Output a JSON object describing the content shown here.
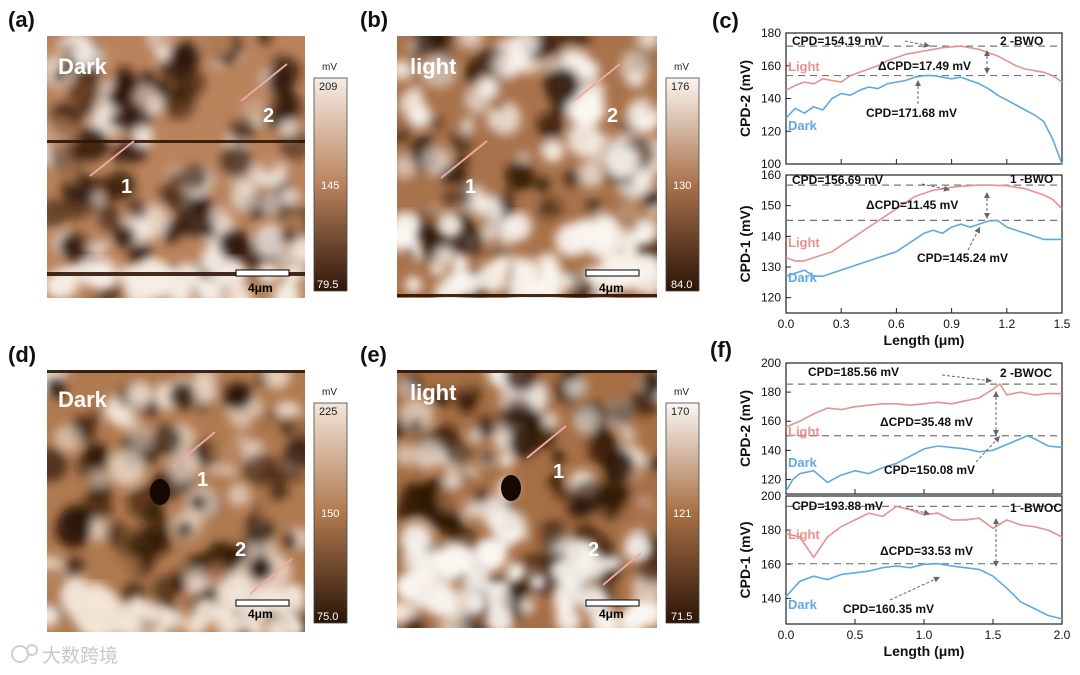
{
  "figure": {
    "watermark": "大数跨境",
    "panels": {
      "a": {
        "tag": "(a)",
        "condition": "Dark",
        "scale_unit": "mV",
        "scale_max": "209",
        "scale_mid": "145",
        "scale_min": "79.5",
        "scalebar": "4μm",
        "marker_1": "1",
        "marker_2": "2",
        "colors": {
          "light": "#f6ede6",
          "mid": "#b9835c",
          "dark": "#2f1608"
        }
      },
      "b": {
        "tag": "(b)",
        "condition": "light",
        "scale_unit": "mV",
        "scale_max": "176",
        "scale_mid": "130",
        "scale_min": "84.0",
        "scalebar": "4μm",
        "marker_1": "1",
        "marker_2": "2",
        "colors": {
          "light": "#fbf6f1",
          "mid": "#a8724b",
          "dark": "#2b1406"
        }
      },
      "d": {
        "tag": "(d)",
        "condition": "Dark",
        "scale_unit": "mV",
        "scale_max": "225",
        "scale_mid": "150",
        "scale_min": "75.0",
        "scalebar": "4μm",
        "marker_1": "1",
        "marker_2": "2",
        "colors": {
          "light": "#f3e6d9",
          "mid": "#b07a50",
          "dark": "#2a1407"
        }
      },
      "e": {
        "tag": "(e)",
        "condition": "light",
        "scale_unit": "mV",
        "scale_max": "170",
        "scale_mid": "121",
        "scale_min": "71.5",
        "scalebar": "4μm",
        "marker_1": "1",
        "marker_2": "2",
        "colors": {
          "light": "#fbf7f3",
          "mid": "#a66f45",
          "dark": "#2b1407"
        }
      }
    }
  },
  "chart_data": [
    {
      "id": "c-top",
      "panel_tag": "(c)",
      "type": "line",
      "ylabel": "CPD-2 (mV)",
      "ylim": [
        100,
        180
      ],
      "yticks": [
        100,
        120,
        140,
        160,
        180
      ],
      "xlim": [
        0,
        1.5
      ],
      "xticks": [
        "0.0",
        "0.3",
        "0.6",
        "0.9",
        "1.2",
        "1.5"
      ],
      "xticks_shown": false,
      "sample": "2 -BWO",
      "series": [
        {
          "name": "Light",
          "color": "#e7928f",
          "x": [
            0,
            0.05,
            0.1,
            0.15,
            0.2,
            0.25,
            0.3,
            0.35,
            0.4,
            0.45,
            0.5,
            0.55,
            0.6,
            0.65,
            0.7,
            0.75,
            0.8,
            0.85,
            0.9,
            0.95,
            1.0,
            1.05,
            1.1,
            1.15,
            1.2,
            1.25,
            1.3,
            1.35,
            1.4,
            1.45,
            1.5
          ],
          "y": [
            145,
            148,
            150,
            149,
            152,
            151,
            150,
            154,
            156,
            158,
            160,
            163,
            165,
            167,
            168,
            169,
            170,
            171,
            171.5,
            172,
            171,
            170,
            168,
            166,
            163,
            160,
            158,
            157,
            156,
            154,
            150
          ]
        },
        {
          "name": "Dark",
          "color": "#5ea9e2",
          "x": [
            0,
            0.05,
            0.1,
            0.15,
            0.2,
            0.25,
            0.3,
            0.35,
            0.4,
            0.45,
            0.5,
            0.55,
            0.6,
            0.65,
            0.7,
            0.75,
            0.8,
            0.85,
            0.9,
            0.95,
            1.0,
            1.05,
            1.1,
            1.15,
            1.2,
            1.25,
            1.3,
            1.35,
            1.4,
            1.45,
            1.5
          ],
          "y": [
            128,
            134,
            131,
            135,
            133,
            140,
            143,
            142,
            145,
            147,
            146,
            149,
            150,
            151,
            153,
            154,
            154,
            153,
            152,
            153,
            151,
            149,
            146,
            142,
            139,
            136,
            133,
            130,
            126,
            115,
            100
          ]
        }
      ],
      "hlines": [
        172,
        154
      ],
      "annotations": {
        "cpd_high": "CPD=154.19 mV",
        "delta": "ΔCPD=17.49 mV",
        "cpd_low": "CPD=171.68 mV"
      }
    },
    {
      "id": "c-bottom",
      "type": "line",
      "ylabel": "CPD-1 (mV)",
      "ylim": [
        115,
        160
      ],
      "yticks": [
        120,
        130,
        140,
        150,
        160
      ],
      "xlim": [
        0,
        1.5
      ],
      "xticks": [
        "0.0",
        "0.3",
        "0.6",
        "0.9",
        "1.2",
        "1.5"
      ],
      "xticks_shown": true,
      "xlabel": "Length (μm)",
      "sample": "1 -BWO",
      "series": [
        {
          "name": "Light",
          "color": "#e7928f",
          "x": [
            0,
            0.05,
            0.1,
            0.15,
            0.2,
            0.25,
            0.3,
            0.35,
            0.4,
            0.45,
            0.5,
            0.55,
            0.6,
            0.65,
            0.7,
            0.75,
            0.8,
            0.85,
            0.9,
            0.95,
            1.0,
            1.05,
            1.1,
            1.15,
            1.2,
            1.25,
            1.3,
            1.35,
            1.4,
            1.45,
            1.5
          ],
          "y": [
            133,
            132,
            132,
            133,
            134,
            135,
            137,
            139,
            141,
            143,
            145,
            147,
            149,
            151,
            153,
            154,
            155,
            155.5,
            156,
            156.3,
            156.5,
            156.7,
            156.7,
            156.6,
            156.5,
            156,
            155.5,
            154.5,
            153.5,
            152,
            149
          ]
        },
        {
          "name": "Dark",
          "color": "#5ea9e2",
          "x": [
            0,
            0.05,
            0.1,
            0.15,
            0.2,
            0.25,
            0.3,
            0.35,
            0.4,
            0.45,
            0.5,
            0.55,
            0.6,
            0.65,
            0.7,
            0.75,
            0.8,
            0.85,
            0.9,
            0.95,
            1.0,
            1.05,
            1.1,
            1.15,
            1.2,
            1.25,
            1.3,
            1.35,
            1.4,
            1.45,
            1.5
          ],
          "y": [
            127,
            128,
            129,
            127,
            127,
            128,
            129,
            130,
            131,
            132,
            133,
            134,
            135,
            137,
            139,
            141,
            142,
            141,
            143,
            144,
            143,
            144,
            145,
            145.2,
            143,
            142,
            141,
            140,
            139,
            139,
            139
          ]
        }
      ],
      "hlines": [
        156.7,
        145.2
      ],
      "annotations": {
        "cpd_high": "CPD=156.69 mV",
        "delta": "ΔCPD=11.45 mV",
        "cpd_low": "CPD=145.24 mV"
      }
    },
    {
      "id": "f-top",
      "panel_tag": "(f)",
      "type": "line",
      "ylabel": "CPD-2 (mV)",
      "ylim": [
        110,
        200
      ],
      "yticks": [
        120,
        140,
        160,
        180,
        200
      ],
      "xlim": [
        0,
        2.0
      ],
      "xticks": [
        "0.0",
        "0.5",
        "1.0",
        "1.5",
        "2.0"
      ],
      "xticks_shown": false,
      "sample": "2 -BWOC",
      "series": [
        {
          "name": "Light",
          "color": "#e7928f",
          "x": [
            0,
            0.1,
            0.2,
            0.3,
            0.4,
            0.5,
            0.6,
            0.7,
            0.8,
            0.9,
            1.0,
            1.1,
            1.2,
            1.3,
            1.4,
            1.5,
            1.55,
            1.6,
            1.7,
            1.8,
            1.9,
            2.0
          ],
          "y": [
            156,
            160,
            165,
            169,
            168,
            170,
            171,
            172,
            172,
            171,
            172,
            173,
            172,
            174,
            176,
            182,
            185.5,
            178,
            180,
            178,
            179,
            179
          ]
        },
        {
          "name": "Dark",
          "color": "#5ea9e2",
          "x": [
            0,
            0.05,
            0.1,
            0.2,
            0.3,
            0.4,
            0.5,
            0.6,
            0.7,
            0.8,
            0.9,
            1.0,
            1.1,
            1.2,
            1.3,
            1.4,
            1.5,
            1.6,
            1.7,
            1.75,
            1.8,
            1.9,
            2.0
          ],
          "y": [
            112,
            120,
            124,
            126,
            118,
            123,
            126,
            124,
            128,
            131,
            136,
            141,
            143,
            142,
            141,
            139,
            140,
            144,
            148,
            150,
            148,
            143,
            142
          ]
        }
      ],
      "hlines": [
        185.5,
        150
      ],
      "annotations": {
        "cpd_high": "CPD=185.56 mV",
        "delta": "ΔCPD=35.48 mV",
        "cpd_low": "CPD=150.08 mV"
      }
    },
    {
      "id": "f-bottom",
      "type": "line",
      "ylabel": "CPD-1 (mV)",
      "ylim": [
        125,
        200
      ],
      "yticks": [
        140,
        160,
        180,
        200
      ],
      "xlim": [
        0,
        2.0
      ],
      "xticks": [
        "0.0",
        "0.5",
        "1.0",
        "1.5",
        "2.0"
      ],
      "xticks_shown": true,
      "xlabel": "Length (μm)",
      "sample": "1 -BWOC",
      "series": [
        {
          "name": "Light",
          "color": "#e7928f",
          "x": [
            0,
            0.1,
            0.2,
            0.3,
            0.4,
            0.5,
            0.6,
            0.7,
            0.8,
            0.9,
            1.0,
            1.1,
            1.2,
            1.3,
            1.4,
            1.5,
            1.6,
            1.7,
            1.8,
            1.9,
            2.0
          ],
          "y": [
            178,
            176,
            164,
            176,
            182,
            186,
            190,
            188,
            193.9,
            192,
            189,
            190,
            186,
            186,
            187,
            181,
            186,
            183,
            182,
            180,
            176
          ]
        },
        {
          "name": "Dark",
          "color": "#5ea9e2",
          "x": [
            0,
            0.1,
            0.2,
            0.3,
            0.4,
            0.5,
            0.6,
            0.7,
            0.8,
            0.9,
            1.0,
            1.1,
            1.2,
            1.3,
            1.4,
            1.5,
            1.6,
            1.7,
            1.8,
            1.9,
            2.0
          ],
          "y": [
            141,
            150,
            153,
            151,
            154,
            155,
            156,
            158,
            159,
            158,
            160,
            160.35,
            159,
            158,
            157,
            153,
            146,
            138,
            134,
            130,
            128
          ]
        }
      ],
      "hlines": [
        193.9,
        160.35
      ],
      "annotations": {
        "cpd_high": "CPD=193.88 mV",
        "delta": "ΔCPD=33.53 mV",
        "cpd_low": "CPD=160.35 mV"
      }
    }
  ]
}
